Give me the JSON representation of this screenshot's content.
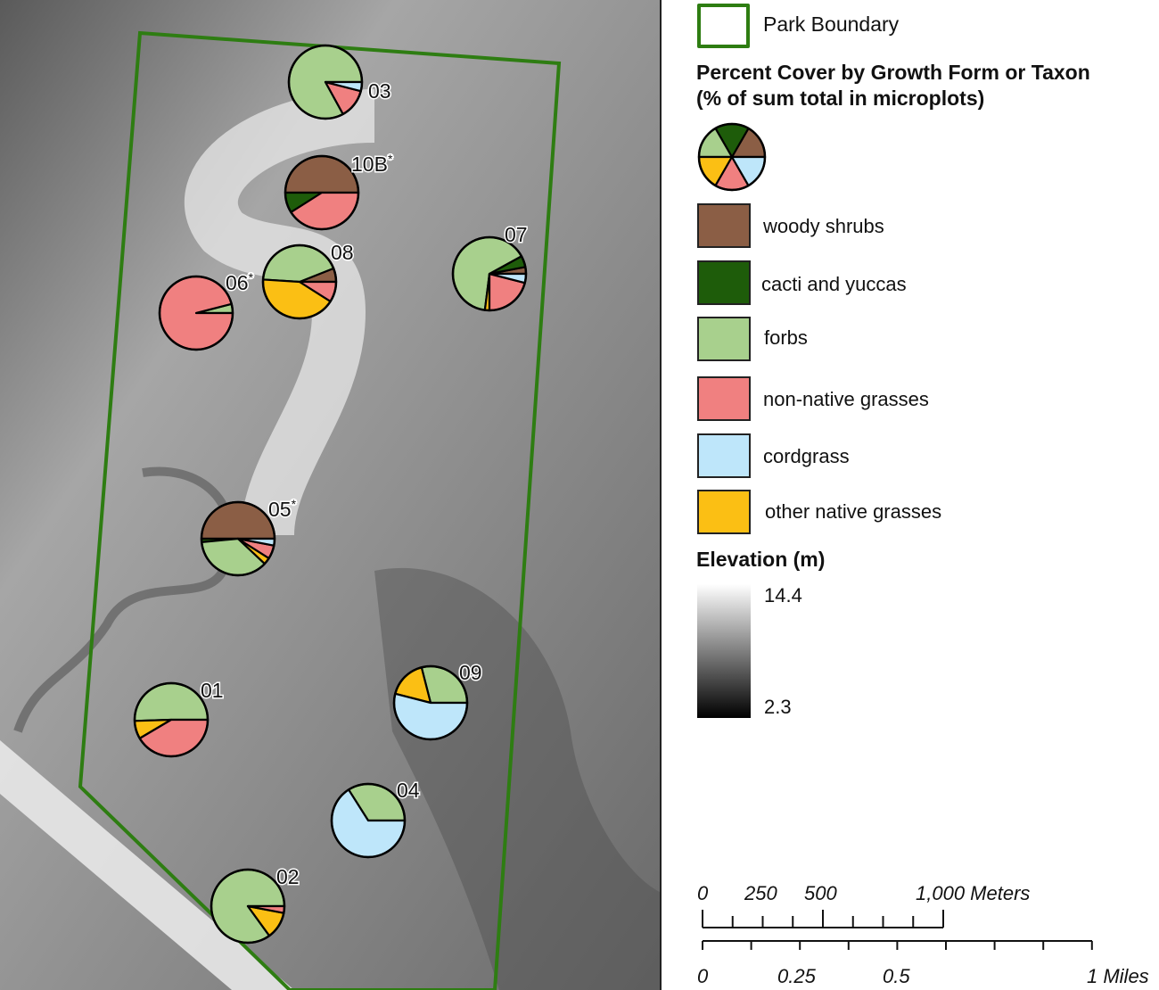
{
  "legend": {
    "boundary_label": "Park Boundary",
    "boundary_color": "#2E7D12",
    "pie_title_line1": "Percent Cover by Growth Form or Taxon",
    "pie_title_line2": "(% of sum total in microplots)",
    "categories": [
      {
        "key": "woody",
        "label": "woody shrubs",
        "color": "#8B5E45"
      },
      {
        "key": "cacti",
        "label": "cacti and yuccas",
        "color": "#1E5C0A"
      },
      {
        "key": "forbs",
        "label": "forbs",
        "color": "#A8D08D"
      },
      {
        "key": "nonnative",
        "label": "non-native grasses",
        "color": "#F08080"
      },
      {
        "key": "cordgrass",
        "label": "cordgrass",
        "color": "#BEE6FA"
      },
      {
        "key": "othernative",
        "label": "other native grasses",
        "color": "#FBBF14"
      }
    ],
    "elevation_title": "Elevation (m)",
    "elevation_max": "14.4",
    "elevation_min": "2.3"
  },
  "scale": {
    "meters_labels": [
      "0",
      "250",
      "500",
      "1,000 Meters"
    ],
    "miles_labels": [
      "0",
      "0.25",
      "0.5",
      "1 Miles"
    ]
  },
  "chart_data": {
    "type": "pie",
    "title": "Percent Cover by Growth Form or Taxon (% of sum total in microplots)",
    "plots": [
      {
        "label": "03",
        "starred": false,
        "slices": {
          "forbs": 83,
          "nonnative": 13,
          "cordgrass": 4
        },
        "order": [
          "forbs",
          "nonnative",
          "cordgrass"
        ]
      },
      {
        "label": "10B",
        "starred": true,
        "slices": {
          "woody": 50,
          "cacti": 9,
          "nonnative": 41
        },
        "order": [
          "woody",
          "cacti",
          "nonnative"
        ]
      },
      {
        "label": "08",
        "starred": false,
        "slices": {
          "woody": 6,
          "forbs": 43,
          "othernative": 42,
          "nonnative": 9
        },
        "order": [
          "woody",
          "forbs",
          "othernative",
          "nonnative"
        ]
      },
      {
        "label": "06",
        "starred": true,
        "slices": {
          "forbs": 4,
          "nonnative": 96
        },
        "order": [
          "forbs",
          "nonnative"
        ]
      },
      {
        "label": "07",
        "starred": false,
        "slices": {
          "woody": 3,
          "cacti": 5,
          "forbs": 65,
          "othernative": 2,
          "nonnative": 21,
          "cordgrass": 4
        },
        "order": [
          "woody",
          "cacti",
          "forbs",
          "othernative",
          "nonnative",
          "cordgrass"
        ]
      },
      {
        "label": "05",
        "starred": true,
        "slices": {
          "woody": 50,
          "cacti": 1.5,
          "forbs": 36.5,
          "othernative": 3,
          "nonnative": 6,
          "cordgrass": 3
        },
        "order": [
          "woody",
          "cacti",
          "forbs",
          "othernative",
          "nonnative",
          "cordgrass"
        ]
      },
      {
        "label": "01",
        "starred": false,
        "slices": {
          "forbs": 50.5,
          "othernative": 8,
          "nonnative": 41.5
        },
        "order": [
          "forbs",
          "othernative",
          "nonnative"
        ]
      },
      {
        "label": "09",
        "starred": false,
        "slices": {
          "forbs": 29,
          "othernative": 17,
          "cordgrass": 54
        },
        "order": [
          "forbs",
          "othernative",
          "cordgrass"
        ]
      },
      {
        "label": "04",
        "starred": false,
        "slices": {
          "forbs": 34,
          "cordgrass": 66
        },
        "order": [
          "forbs",
          "cordgrass"
        ]
      },
      {
        "label": "02",
        "starred": false,
        "slices": {
          "forbs": 85,
          "othernative": 12,
          "nonnative": 3
        },
        "order": [
          "forbs",
          "othernative",
          "nonnative"
        ]
      }
    ]
  }
}
